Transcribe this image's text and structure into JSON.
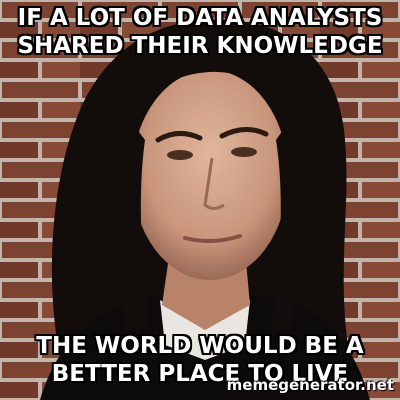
{
  "meme": {
    "top_text": "IF A LOT OF DATA ANALYSTS SHARED THEIR KNOWLEDGE",
    "bottom_text": "THE WORLD WOULD BE A BETTER PLACE TO LIVE",
    "watermark": "memegenerator.net"
  },
  "colors": {
    "caption_text": "#ffffff",
    "caption_outline": "#000000",
    "brick": "#8a4a36",
    "mortar": "#d8cfc6",
    "hair": "#120d0b",
    "skin": "#d3a489"
  }
}
